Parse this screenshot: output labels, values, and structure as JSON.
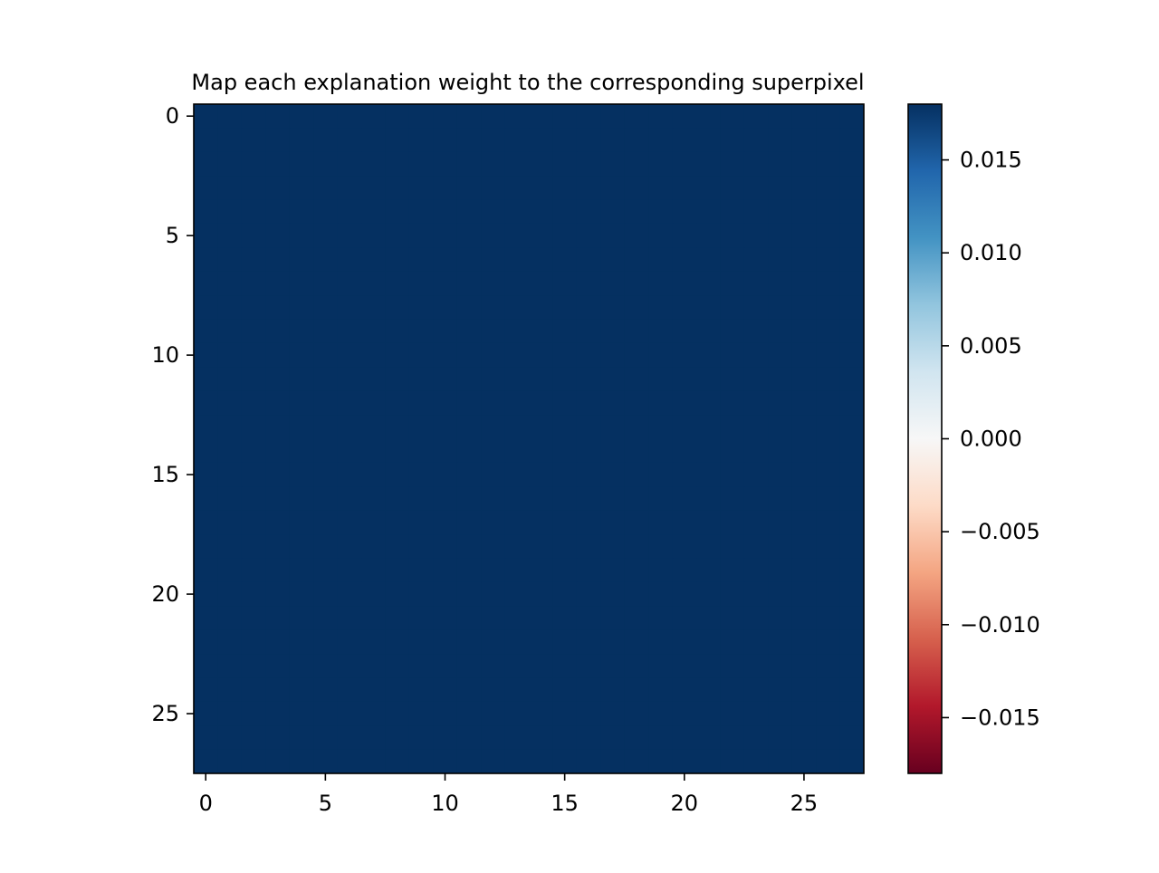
{
  "chart_data": {
    "type": "heatmap",
    "title": "Map each explanation weight to the corresponding superpixel",
    "xlabel": "",
    "ylabel": "",
    "rows": 28,
    "cols": 28,
    "xlim": [
      -0.5,
      27.5
    ],
    "ylim": [
      27.5,
      -0.5
    ],
    "x_ticks": [
      0,
      5,
      10,
      15,
      20,
      25
    ],
    "y_ticks": [
      0,
      5,
      10,
      15,
      20,
      25
    ],
    "cell_value": 0.018,
    "colorbar": {
      "colormap": "RdBu",
      "vmin": -0.018,
      "vmax": 0.018,
      "ticks": [
        0.015,
        0.01,
        0.005,
        0.0,
        -0.005,
        -0.01,
        -0.015
      ],
      "tick_labels": [
        "0.015",
        "0.010",
        "0.005",
        "0.000",
        "−0.005",
        "−0.010",
        "−0.015"
      ],
      "stops": [
        "#67001f",
        "#b2182b",
        "#d6604d",
        "#f4a582",
        "#fddbc7",
        "#f7f7f7",
        "#d1e5f0",
        "#92c5de",
        "#4393c3",
        "#2166ac",
        "#053061"
      ]
    },
    "grid": false
  }
}
